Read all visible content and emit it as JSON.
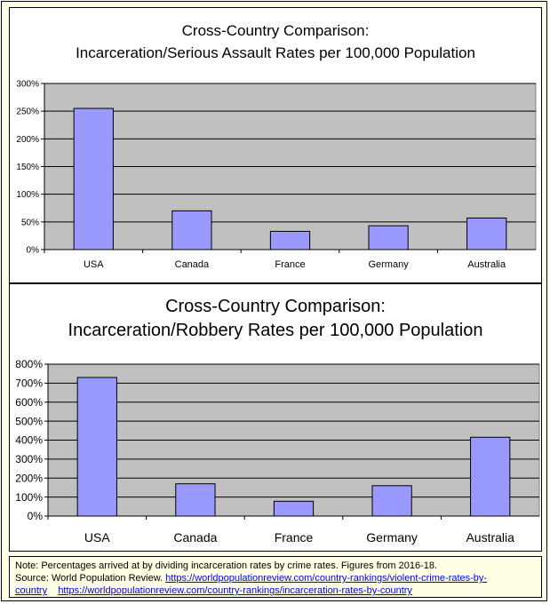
{
  "chart_data": [
    {
      "type": "bar",
      "title_lines": [
        "Cross-Country Comparison:",
        "Incarceration/Serious Assault Rates per 100,000 Population"
      ],
      "categories": [
        "USA",
        "Canada",
        "France",
        "Germany",
        "Australia"
      ],
      "values": [
        255,
        70,
        33,
        43,
        57
      ],
      "ylim": [
        0,
        300
      ],
      "yticks": [
        0,
        50,
        100,
        150,
        200,
        250,
        300
      ],
      "ytick_labels": [
        "0%",
        "50%",
        "100%",
        "150%",
        "200%",
        "250%",
        "300%"
      ],
      "xlabel": "",
      "ylabel": "",
      "grid": true,
      "colors": {
        "bar": "#9999ff",
        "plot_bg": "#c0c0c0",
        "grid": "#000000"
      }
    },
    {
      "type": "bar",
      "title_lines": [
        "Cross-Country Comparison:",
        "Incarceration/Robbery Rates per 100,000 Population"
      ],
      "categories": [
        "USA",
        "Canada",
        "France",
        "Germany",
        "Australia"
      ],
      "values": [
        730,
        170,
        78,
        160,
        415
      ],
      "ylim": [
        0,
        800
      ],
      "yticks": [
        0,
        100,
        200,
        300,
        400,
        500,
        600,
        700,
        800
      ],
      "ytick_labels": [
        "0%",
        "100%",
        "200%",
        "300%",
        "400%",
        "500%",
        "600%",
        "700%",
        "800%"
      ],
      "xlabel": "",
      "ylabel": "",
      "grid": true,
      "colors": {
        "bar": "#9999ff",
        "plot_bg": "#c0c0c0",
        "grid": "#000000"
      }
    }
  ],
  "note": {
    "line1": "Note: Percentages arrived at by dividing incarceration rates by crime rates. Figures from 2016-18.",
    "source_prefix": "Source: World Population Review. ",
    "link1_part1": "https://worldpopulationreview.com/country-rankings/violent-crime-rates-by-",
    "link1_part2": "country",
    "link2": "https://worldpopulationreview.com/country-rankings/incarceration-rates-by-country"
  }
}
